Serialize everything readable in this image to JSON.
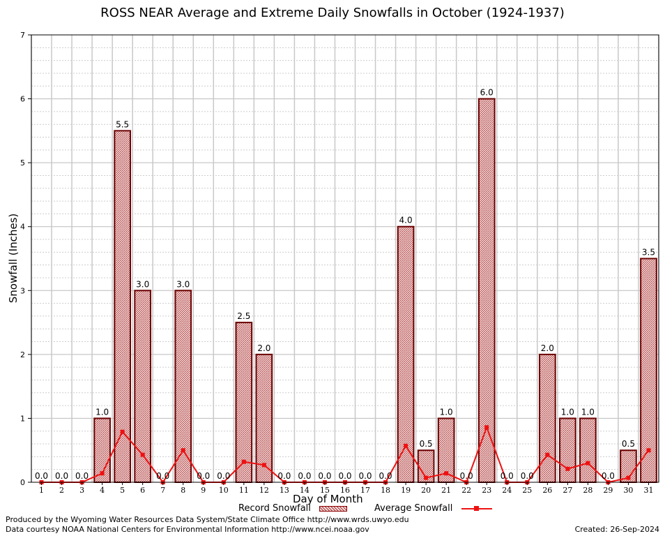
{
  "chart_data": {
    "type": "bar",
    "title": "ROSS NEAR Average and Extreme Daily Snowfalls in October (1924-1937)",
    "xlabel": "Day of Month",
    "ylabel": "Snowfall (Inches)",
    "ylim": [
      0,
      7
    ],
    "yticks": [
      "0",
      "1",
      "2",
      "3",
      "4",
      "5",
      "6",
      "7"
    ],
    "grid": true,
    "legend_position": "bottom",
    "categories": [
      "1",
      "2",
      "3",
      "4",
      "5",
      "6",
      "7",
      "8",
      "9",
      "10",
      "11",
      "12",
      "13",
      "14",
      "15",
      "16",
      "17",
      "18",
      "19",
      "20",
      "21",
      "22",
      "23",
      "24",
      "25",
      "26",
      "27",
      "28",
      "29",
      "30",
      "31"
    ],
    "series": [
      {
        "name": "Record Snowfall",
        "kind": "bar",
        "color": "#8b0000",
        "values": [
          0.0,
          0.0,
          0.0,
          1.0,
          5.5,
          3.0,
          0.0,
          3.0,
          0.0,
          0.0,
          2.5,
          2.0,
          0.0,
          0.0,
          0.0,
          0.0,
          0.0,
          0.0,
          4.0,
          0.5,
          1.0,
          0.0,
          6.0,
          0.0,
          0.0,
          2.0,
          1.0,
          1.0,
          0.0,
          0.5,
          3.5
        ],
        "labels": [
          "0.0",
          "0.0",
          "0.0",
          "1.0",
          "5.5",
          "3.0",
          "0.0",
          "3.0",
          "0.0",
          "0.0",
          "2.5",
          "2.0",
          "0.0",
          "0.0",
          "0.0",
          "0.0",
          "0.0",
          "0.0",
          "4.0",
          "0.5",
          "1.0",
          "0.0",
          "6.0",
          "0.0",
          "0.0",
          "2.0",
          "1.0",
          "1.0",
          "0.0",
          "0.5",
          "3.5"
        ]
      },
      {
        "name": "Average Snowfall",
        "kind": "line",
        "color": "#ee1111",
        "values": [
          0.0,
          0.0,
          0.0,
          0.14,
          0.79,
          0.43,
          0.0,
          0.5,
          0.0,
          0.0,
          0.32,
          0.27,
          0.0,
          0.0,
          0.0,
          0.0,
          0.0,
          0.0,
          0.57,
          0.07,
          0.14,
          0.0,
          0.86,
          0.0,
          0.0,
          0.43,
          0.21,
          0.3,
          0.0,
          0.07,
          0.5
        ]
      }
    ]
  },
  "footer": {
    "credit_1": "Produced by the Wyoming Water Resources Data System/State Climate Office http://www.wrds.uwyo.edu",
    "credit_2": "Data courtesy NOAA National Centers for Environmental Information http://www.ncei.noaa.gov",
    "created": "Created: 26-Sep-2024"
  }
}
